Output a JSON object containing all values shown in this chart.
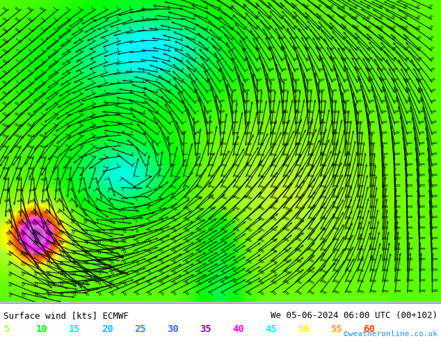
{
  "title_left": "Surface wind [kts] ECMWF",
  "title_right": "We 05-06-2024 06:00 UTC (00+102)",
  "credit": "©weatheronline.co.uk",
  "legend_values": [
    5,
    10,
    15,
    20,
    25,
    30,
    35,
    40,
    45,
    50,
    55,
    60
  ],
  "legend_colors": [
    "#adff2f",
    "#00ff00",
    "#00e000",
    "#00ffff",
    "#00bfff",
    "#1e90ff",
    "#0000ff",
    "#9400d3",
    "#ff00ff",
    "#ff1493",
    "#ff4500",
    "#ff8c00"
  ],
  "bg_color": "#ffffff",
  "map_bg": "#7ec8e3",
  "figsize": [
    6.34,
    4.9
  ],
  "dpi": 100,
  "bottom_bar_height": 0.1,
  "label_fontsize": 9,
  "credit_fontsize": 8,
  "wind_colors": [
    "#adff2f",
    "#00ff00",
    "#00dd00",
    "#00ffff",
    "#00bfff",
    "#1e90ff",
    "#0000cd",
    "#8b008b",
    "#ff00ff",
    "#ff1493",
    "#ff6347",
    "#ffa500"
  ]
}
